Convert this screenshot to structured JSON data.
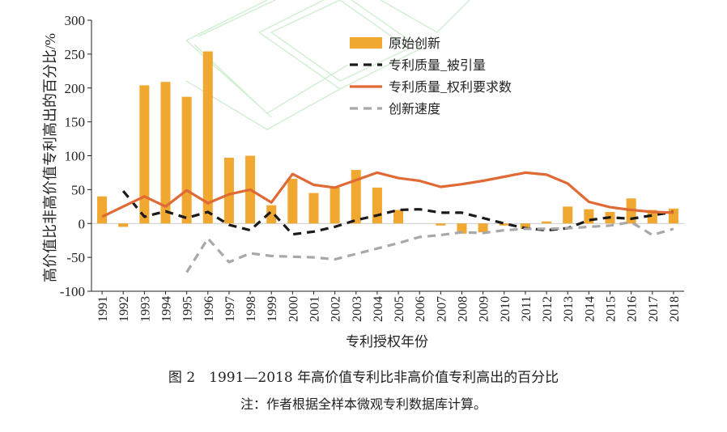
{
  "figure": {
    "title": "图 2　1991—2018 年高价值专利比非高价值专利高出的百分比",
    "note": "注：作者根据全样本微观专利数据库计算。"
  },
  "chart_data": {
    "type": "bar",
    "xlabel": "专利授权年份",
    "ylabel": "高价值比非高价值专利高出的百分比/%",
    "ylim": [
      -100,
      300
    ],
    "yticks": [
      -100,
      -50,
      0,
      50,
      100,
      150,
      200,
      250,
      300
    ],
    "categories": [
      "1991",
      "1992",
      "1993",
      "1994",
      "1995",
      "1996",
      "1997",
      "1998",
      "1999",
      "2000",
      "2001",
      "2002",
      "2003",
      "2004",
      "2005",
      "2006",
      "2007",
      "2008",
      "2009",
      "2010",
      "2011",
      "2012",
      "2013",
      "2014",
      "2015",
      "2016",
      "2017",
      "2018"
    ],
    "legend_position": "top-right",
    "series": [
      {
        "name": "原始创新",
        "kind": "bar",
        "color": "#F0A830",
        "values": [
          40,
          -5,
          204,
          209,
          187,
          254,
          97,
          100,
          27,
          66,
          45,
          53,
          79,
          53,
          20,
          0,
          -3,
          -15,
          -13,
          -3,
          -8,
          3,
          25,
          21,
          17,
          37,
          20,
          22
        ]
      },
      {
        "name": "专利质量_被引量",
        "kind": "line",
        "color": "#1a1a1a",
        "dash": "10,7",
        "values": [
          null,
          48,
          10,
          18,
          8,
          17,
          -2,
          -10,
          18,
          -16,
          -12,
          -5,
          5,
          12,
          20,
          21,
          16,
          16,
          8,
          0,
          -7,
          -10,
          -7,
          5,
          9,
          7,
          12,
          17
        ]
      },
      {
        "name": "专利质量_权利要求数",
        "kind": "line",
        "color": "#E06A35",
        "dash": "",
        "values": [
          10,
          25,
          40,
          25,
          49,
          30,
          43,
          50,
          31,
          73,
          57,
          53,
          64,
          75,
          67,
          63,
          54,
          58,
          63,
          69,
          75,
          72,
          59,
          32,
          24,
          20,
          17,
          16
        ]
      },
      {
        "name": "创新速度",
        "kind": "line",
        "color": "#A8A8A8",
        "dash": "10,7",
        "values": [
          null,
          null,
          null,
          null,
          -72,
          -22,
          -57,
          -44,
          -48,
          -49,
          -50,
          -53,
          -45,
          -37,
          -29,
          -20,
          -17,
          -13,
          -14,
          -10,
          -8,
          -8,
          -7,
          -5,
          -3,
          2,
          -17,
          -8
        ]
      }
    ]
  }
}
